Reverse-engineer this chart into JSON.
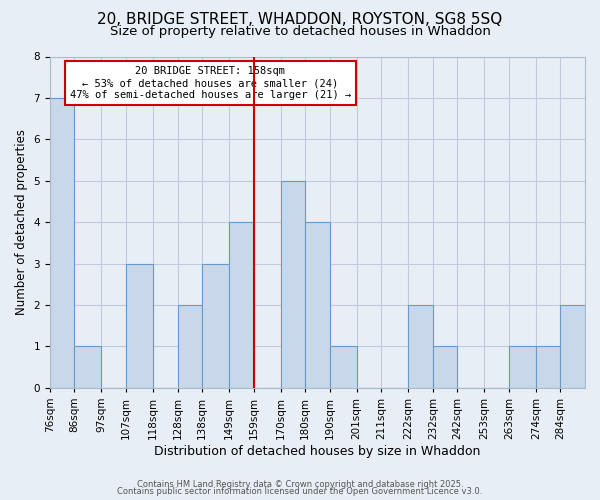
{
  "title": "20, BRIDGE STREET, WHADDON, ROYSTON, SG8 5SQ",
  "subtitle": "Size of property relative to detached houses in Whaddon",
  "xlabel": "Distribution of detached houses by size in Whaddon",
  "ylabel": "Number of detached properties",
  "bin_edges": [
    76,
    86,
    97,
    107,
    118,
    128,
    138,
    149,
    159,
    170,
    180,
    190,
    201,
    211,
    222,
    232,
    242,
    253,
    263,
    274,
    284,
    294
  ],
  "counts": [
    7,
    1,
    0,
    3,
    0,
    2,
    3,
    4,
    0,
    5,
    4,
    1,
    0,
    0,
    2,
    1,
    0,
    0,
    1,
    1,
    2
  ],
  "tick_labels": [
    "76sqm",
    "86sqm",
    "97sqm",
    "107sqm",
    "118sqm",
    "128sqm",
    "138sqm",
    "149sqm",
    "159sqm",
    "170sqm",
    "180sqm",
    "190sqm",
    "201sqm",
    "211sqm",
    "222sqm",
    "232sqm",
    "242sqm",
    "253sqm",
    "263sqm",
    "274sqm",
    "284sqm"
  ],
  "bar_color": "#c8d8ea",
  "bar_edge_color": "#6699cc",
  "vline_x": 159,
  "vline_color": "#cc0000",
  "ylim": [
    0,
    8
  ],
  "yticks": [
    0,
    1,
    2,
    3,
    4,
    5,
    6,
    7,
    8
  ],
  "annotation_title": "20 BRIDGE STREET: 158sqm",
  "annotation_line1": "← 53% of detached houses are smaller (24)",
  "annotation_line2": "47% of semi-detached houses are larger (21) →",
  "annotation_box_color": "#cc0000",
  "annotation_bg": "#ffffff",
  "grid_color": "#c0ccdd",
  "bg_color": "#e8eef5",
  "footer1": "Contains HM Land Registry data © Crown copyright and database right 2025.",
  "footer2": "Contains public sector information licensed under the Open Government Licence v3.0.",
  "title_fontsize": 11,
  "subtitle_fontsize": 9.5,
  "xlabel_fontsize": 9,
  "ylabel_fontsize": 8.5,
  "tick_fontsize": 7.5
}
